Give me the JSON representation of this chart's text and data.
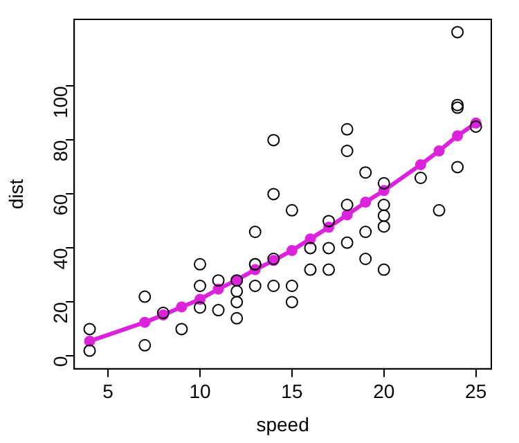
{
  "chart_data": {
    "type": "scatter",
    "xlabel": "speed",
    "ylabel": "dist",
    "xlim": [
      3.16,
      25.84
    ],
    "ylim": [
      -4.72,
      124.72
    ],
    "xticks": [
      5,
      10,
      15,
      20,
      25
    ],
    "yticks": [
      0,
      20,
      40,
      60,
      80,
      100
    ],
    "grid": false,
    "legend": false,
    "marker": "circle",
    "series": [
      {
        "type": "scatter",
        "color": "#000000",
        "x": [
          4,
          4,
          7,
          7,
          8,
          9,
          10,
          10,
          10,
          11,
          11,
          12,
          12,
          12,
          12,
          13,
          13,
          13,
          13,
          14,
          14,
          14,
          14,
          15,
          15,
          15,
          16,
          16,
          17,
          17,
          17,
          18,
          18,
          18,
          18,
          19,
          19,
          19,
          20,
          20,
          20,
          20,
          20,
          22,
          23,
          24,
          24,
          24,
          24,
          25
        ],
        "values": [
          2,
          10,
          4,
          22,
          16,
          10,
          18,
          26,
          34,
          17,
          28,
          14,
          20,
          24,
          28,
          26,
          34,
          34,
          46,
          26,
          36,
          60,
          80,
          20,
          26,
          54,
          32,
          40,
          32,
          40,
          50,
          42,
          56,
          76,
          84,
          36,
          46,
          68,
          32,
          48,
          52,
          56,
          64,
          66,
          54,
          70,
          92,
          93,
          120,
          85
        ]
      },
      {
        "type": "line",
        "color": "#dd22dd",
        "x": [
          4,
          7,
          8,
          9,
          10,
          11,
          12,
          13,
          14,
          15,
          16,
          17,
          18,
          19,
          20,
          22,
          23,
          24,
          25
        ],
        "values": [
          5.5,
          12.5,
          15.2,
          18.2,
          21,
          24.8,
          28.2,
          32,
          35.4,
          39.1,
          43.4,
          47.7,
          52.3,
          57,
          61.3,
          70.9,
          76,
          81.6,
          86.3
        ]
      }
    ]
  }
}
